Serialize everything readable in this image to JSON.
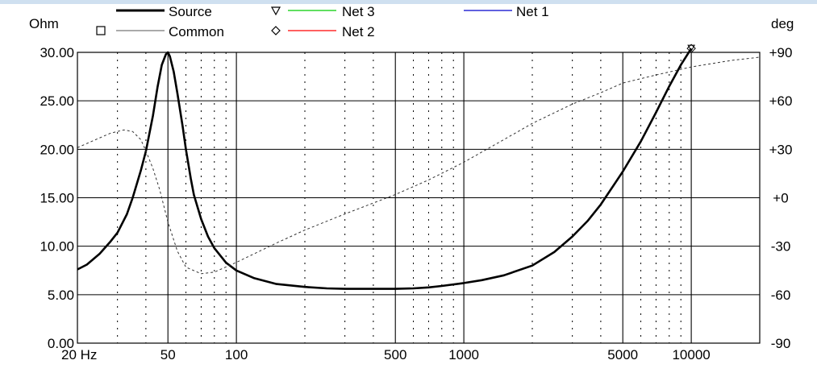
{
  "chart_data": {
    "type": "line",
    "title": "",
    "y_left_unit": "Ohm",
    "y_right_unit": "deg",
    "x_scale": "log",
    "xlim": [
      20,
      20000
    ],
    "ylim_left": [
      0,
      30
    ],
    "ylim_right": [
      -90,
      90
    ],
    "x_tick_labels": [
      {
        "value": 20,
        "label": "20 Hz"
      },
      {
        "value": 50,
        "label": "50"
      },
      {
        "value": 100,
        "label": "100"
      },
      {
        "value": 500,
        "label": "500"
      },
      {
        "value": 1000,
        "label": "1000"
      },
      {
        "value": 5000,
        "label": "5000"
      },
      {
        "value": 10000,
        "label": "10000"
      }
    ],
    "y_left_tick_labels": [
      {
        "value": 0,
        "label": "0.00"
      },
      {
        "value": 5,
        "label": "5.00"
      },
      {
        "value": 10,
        "label": "10.00"
      },
      {
        "value": 15,
        "label": "15.00"
      },
      {
        "value": 20,
        "label": "20.00"
      },
      {
        "value": 25,
        "label": "25.00"
      },
      {
        "value": 30,
        "label": "30.00"
      }
    ],
    "y_right_tick_labels": [
      {
        "value": -90,
        "label": "-90"
      },
      {
        "value": -60,
        "label": "-60"
      },
      {
        "value": -30,
        "label": "-30"
      },
      {
        "value": 0,
        "label": "+0"
      },
      {
        "value": 30,
        "label": "+30"
      },
      {
        "value": 60,
        "label": "+60"
      },
      {
        "value": 90,
        "label": "+90"
      }
    ],
    "grid": true,
    "legend": [
      {
        "name": "Source",
        "color": "#000000",
        "style": "solid-bold",
        "marker": "none"
      },
      {
        "name": "Common",
        "color": "#555555",
        "style": "dotted",
        "marker": "square"
      },
      {
        "name": "Net 3",
        "color": "#00cc00",
        "style": "solid",
        "marker": "triangle-down"
      },
      {
        "name": "Net 2",
        "color": "#ff0000",
        "style": "solid",
        "marker": "diamond"
      },
      {
        "name": "Net 1",
        "color": "#0000cc",
        "style": "solid",
        "marker": "none"
      }
    ],
    "series": [
      {
        "name": "Source",
        "axis": "left",
        "x": [
          20,
          22,
          25,
          28,
          30,
          33,
          35,
          38,
          40,
          43,
          45,
          47,
          49,
          50,
          51,
          53,
          55,
          58,
          60,
          63,
          65,
          70,
          75,
          80,
          90,
          100,
          120,
          150,
          200,
          250,
          300,
          400,
          500,
          600,
          700,
          800,
          1000,
          1200,
          1500,
          2000,
          2500,
          3000,
          3500,
          4000,
          5000,
          6000,
          7000,
          8000,
          9000,
          10000
        ],
        "values": [
          7.6,
          8.1,
          9.2,
          10.5,
          11.4,
          13.3,
          15.0,
          17.8,
          19.8,
          23.5,
          26.4,
          28.7,
          29.8,
          30.0,
          29.6,
          28.0,
          25.8,
          22.4,
          20.0,
          17.0,
          15.3,
          12.8,
          11.0,
          9.8,
          8.3,
          7.5,
          6.7,
          6.1,
          5.8,
          5.65,
          5.6,
          5.6,
          5.6,
          5.65,
          5.75,
          5.9,
          6.2,
          6.5,
          7.0,
          8.0,
          9.4,
          11.0,
          12.6,
          14.3,
          17.7,
          20.8,
          23.8,
          26.5,
          28.7,
          30.4
        ]
      },
      {
        "name": "Common",
        "axis": "right",
        "x": [
          20,
          25,
          28,
          32,
          35,
          38,
          40,
          43,
          46,
          50,
          55,
          60,
          70,
          80,
          100,
          150,
          200,
          300,
          500,
          700,
          1000,
          1500,
          2000,
          3000,
          4000,
          5000,
          7000,
          10000,
          15000,
          20000
        ],
        "values": [
          31,
          37,
          40,
          42,
          41,
          36,
          29,
          18,
          5,
          -15,
          -33,
          -43,
          -47,
          -46,
          -40,
          -28,
          -20,
          -10,
          2,
          11,
          22,
          36,
          46,
          58,
          65,
          71,
          76,
          81,
          85,
          87
        ]
      }
    ]
  }
}
